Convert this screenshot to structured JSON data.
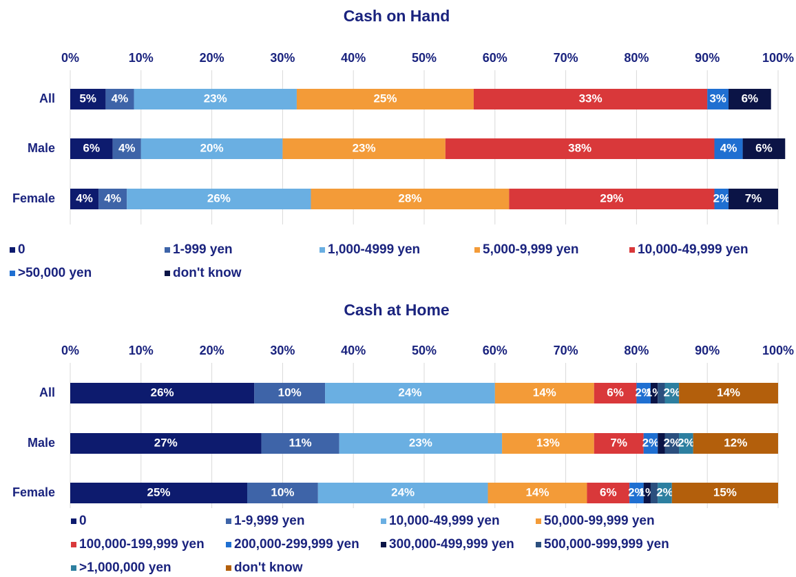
{
  "chart_data": [
    {
      "type": "bar",
      "orientation": "horizontal",
      "stacked": true,
      "title": "Cash on Hand",
      "categories": [
        "All",
        "Male",
        "Female"
      ],
      "xlim": [
        0,
        100
      ],
      "xticks": [
        {
          "value": 0,
          "label": "0%"
        },
        {
          "value": 10,
          "label": "10%"
        },
        {
          "value": 20,
          "label": "20%"
        },
        {
          "value": 30,
          "label": "30%"
        },
        {
          "value": 40,
          "label": "40%"
        },
        {
          "value": 50,
          "label": "50%"
        },
        {
          "value": 60,
          "label": "60%"
        },
        {
          "value": 70,
          "label": "70%"
        },
        {
          "value": 80,
          "label": "80%"
        },
        {
          "value": 90,
          "label": "90%"
        },
        {
          "value": 100,
          "label": "100%"
        }
      ],
      "grid": true,
      "series": [
        {
          "name": "0",
          "color": "#0d1b6e",
          "values": [
            5,
            6,
            4
          ],
          "value_labels": [
            "5%",
            "6%",
            "4%"
          ]
        },
        {
          "name": "1-999 yen",
          "color": "#3e64a8",
          "values": [
            4,
            4,
            4
          ],
          "value_labels": [
            "4%",
            "4%",
            "4%"
          ]
        },
        {
          "name": "1,000-4999 yen",
          "color": "#6aafe2",
          "values": [
            23,
            20,
            26
          ],
          "value_labels": [
            "23%",
            "20%",
            "26%"
          ]
        },
        {
          "name": "5,000-9,999 yen",
          "color": "#f39b38",
          "values": [
            25,
            23,
            28
          ],
          "value_labels": [
            "25%",
            "23%",
            "28%"
          ]
        },
        {
          "name": "10,000-49,999 yen",
          "color": "#d9383a",
          "values": [
            33,
            38,
            29
          ],
          "value_labels": [
            "33%",
            "38%",
            "29%"
          ]
        },
        {
          "name": ">50,000 yen",
          "color": "#1f6fd1",
          "values": [
            3,
            4,
            2
          ],
          "value_labels": [
            "3%",
            "4%",
            "2%"
          ]
        },
        {
          "name": "don't know",
          "color": "#0b1446",
          "values": [
            6,
            6,
            7
          ],
          "value_labels": [
            "6%",
            "6%",
            "7%"
          ]
        }
      ]
    },
    {
      "type": "bar",
      "orientation": "horizontal",
      "stacked": true,
      "title": "Cash at Home",
      "categories": [
        "All",
        "Male",
        "Female"
      ],
      "xlim": [
        0,
        100
      ],
      "xticks": [
        {
          "value": 0,
          "label": "0%"
        },
        {
          "value": 10,
          "label": "10%"
        },
        {
          "value": 20,
          "label": "20%"
        },
        {
          "value": 30,
          "label": "30%"
        },
        {
          "value": 40,
          "label": "40%"
        },
        {
          "value": 50,
          "label": "50%"
        },
        {
          "value": 60,
          "label": "60%"
        },
        {
          "value": 70,
          "label": "70%"
        },
        {
          "value": 80,
          "label": "80%"
        },
        {
          "value": 90,
          "label": "90%"
        },
        {
          "value": 100,
          "label": "100%"
        }
      ],
      "grid": true,
      "series": [
        {
          "name": "0",
          "color": "#0d1b6e",
          "values": [
            26,
            27,
            25
          ],
          "value_labels": [
            "26%",
            "27%",
            "25%"
          ]
        },
        {
          "name": "1-9,999 yen",
          "color": "#3e64a8",
          "values": [
            10,
            11,
            10
          ],
          "value_labels": [
            "10%",
            "11%",
            "10%"
          ]
        },
        {
          "name": "10,000-49,999 yen",
          "color": "#6aafe2",
          "values": [
            24,
            23,
            24
          ],
          "value_labels": [
            "24%",
            "23%",
            "24%"
          ]
        },
        {
          "name": "50,000-99,999 yen",
          "color": "#f39b38",
          "values": [
            14,
            13,
            14
          ],
          "value_labels": [
            "14%",
            "13%",
            "14%"
          ]
        },
        {
          "name": "100,000-199,999 yen",
          "color": "#d9383a",
          "values": [
            6,
            7,
            6
          ],
          "value_labels": [
            "6%",
            "7%",
            "6%"
          ]
        },
        {
          "name": "200,000-299,999 yen",
          "color": "#1f6fd1",
          "values": [
            2,
            2,
            2
          ],
          "value_labels": [
            "2%",
            "2%",
            "2%"
          ]
        },
        {
          "name": "300,000-499,999 yen",
          "color": "#0b1446",
          "values": [
            1,
            1,
            1
          ],
          "value_labels": [
            "1%",
            null,
            "1%"
          ]
        },
        {
          "name": "500,000-999,999 yen",
          "color": "#2b4f7e",
          "values": [
            1,
            2,
            1
          ],
          "value_labels": [
            null,
            "2%",
            null
          ]
        },
        {
          "name": ">1,000,000 yen",
          "color": "#2d7fa0",
          "values": [
            2,
            2,
            2
          ],
          "value_labels": [
            "2%",
            "2%",
            "2%"
          ]
        },
        {
          "name": "don't know",
          "color": "#b35f0c",
          "values": [
            14,
            12,
            15
          ],
          "value_labels": [
            "14%",
            "12%",
            "15%"
          ]
        }
      ]
    }
  ]
}
